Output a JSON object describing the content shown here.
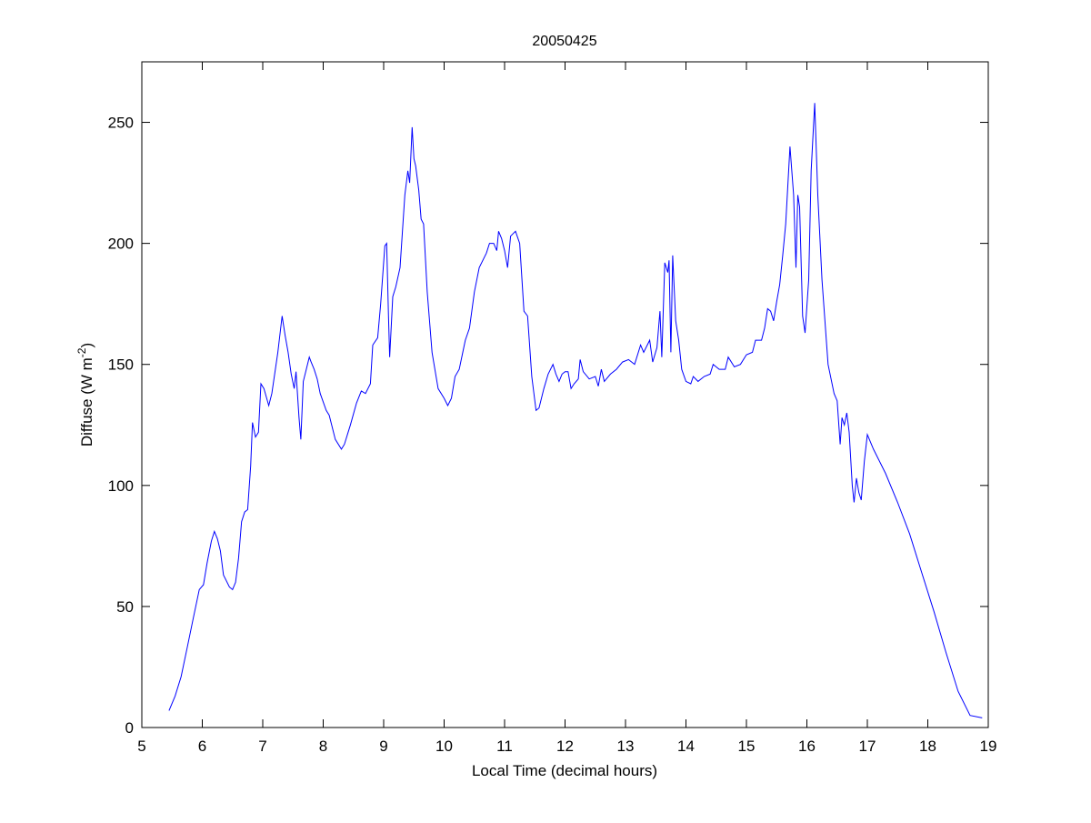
{
  "chart_data": {
    "type": "line",
    "title": "20050425",
    "xlabel": "Local Time (decimal hours)",
    "ylabel_main": "Diffuse (W m",
    "ylabel_sup": "-2",
    "ylabel_close": ")",
    "xlim": [
      5,
      19
    ],
    "ylim": [
      0,
      275
    ],
    "xticks": [
      5,
      6,
      7,
      8,
      9,
      10,
      11,
      12,
      13,
      14,
      15,
      16,
      17,
      18,
      19
    ],
    "yticks": [
      0,
      50,
      100,
      150,
      200,
      250
    ],
    "grid": false,
    "line_color": "#0000ff",
    "series": [
      {
        "name": "Diffuse",
        "points": [
          [
            5.45,
            7
          ],
          [
            5.55,
            13
          ],
          [
            5.65,
            21
          ],
          [
            5.75,
            33
          ],
          [
            5.85,
            45
          ],
          [
            5.95,
            57
          ],
          [
            6.02,
            59
          ],
          [
            6.08,
            68
          ],
          [
            6.15,
            77
          ],
          [
            6.2,
            81
          ],
          [
            6.25,
            78
          ],
          [
            6.3,
            73
          ],
          [
            6.35,
            63
          ],
          [
            6.45,
            58
          ],
          [
            6.5,
            57
          ],
          [
            6.55,
            60
          ],
          [
            6.6,
            70
          ],
          [
            6.65,
            85
          ],
          [
            6.7,
            89
          ],
          [
            6.75,
            90
          ],
          [
            6.8,
            108
          ],
          [
            6.83,
            126
          ],
          [
            6.88,
            120
          ],
          [
            6.93,
            122
          ],
          [
            6.97,
            142
          ],
          [
            7.02,
            140
          ],
          [
            7.1,
            133
          ],
          [
            7.15,
            138
          ],
          [
            7.25,
            155
          ],
          [
            7.32,
            170
          ],
          [
            7.37,
            162
          ],
          [
            7.42,
            155
          ],
          [
            7.47,
            146
          ],
          [
            7.52,
            140
          ],
          [
            7.55,
            147
          ],
          [
            7.6,
            128
          ],
          [
            7.63,
            119
          ],
          [
            7.67,
            143
          ],
          [
            7.72,
            148
          ],
          [
            7.77,
            153
          ],
          [
            7.8,
            151
          ],
          [
            7.85,
            148
          ],
          [
            7.9,
            144
          ],
          [
            7.95,
            138
          ],
          [
            8.05,
            131
          ],
          [
            8.1,
            129
          ],
          [
            8.2,
            119
          ],
          [
            8.3,
            115
          ],
          [
            8.35,
            117
          ],
          [
            8.45,
            125
          ],
          [
            8.55,
            134
          ],
          [
            8.63,
            139
          ],
          [
            8.7,
            138
          ],
          [
            8.78,
            142
          ],
          [
            8.82,
            158
          ],
          [
            8.9,
            161
          ],
          [
            8.95,
            175
          ],
          [
            9.02,
            199
          ],
          [
            9.05,
            200
          ],
          [
            9.08,
            170
          ],
          [
            9.1,
            153
          ],
          [
            9.15,
            178
          ],
          [
            9.2,
            182
          ],
          [
            9.27,
            190
          ],
          [
            9.35,
            220
          ],
          [
            9.4,
            230
          ],
          [
            9.43,
            225
          ],
          [
            9.47,
            248
          ],
          [
            9.5,
            235
          ],
          [
            9.53,
            232
          ],
          [
            9.58,
            222
          ],
          [
            9.62,
            210
          ],
          [
            9.66,
            208
          ],
          [
            9.72,
            180
          ],
          [
            9.8,
            155
          ],
          [
            9.9,
            140
          ],
          [
            10.0,
            136
          ],
          [
            10.06,
            133
          ],
          [
            10.12,
            136
          ],
          [
            10.18,
            145
          ],
          [
            10.25,
            148
          ],
          [
            10.35,
            160
          ],
          [
            10.42,
            165
          ],
          [
            10.5,
            180
          ],
          [
            10.58,
            190
          ],
          [
            10.7,
            196
          ],
          [
            10.75,
            200
          ],
          [
            10.82,
            200
          ],
          [
            10.87,
            197
          ],
          [
            10.9,
            205
          ],
          [
            10.95,
            202
          ],
          [
            11.0,
            197
          ],
          [
            11.05,
            190
          ],
          [
            11.1,
            203
          ],
          [
            11.18,
            205
          ],
          [
            11.25,
            200
          ],
          [
            11.32,
            172
          ],
          [
            11.38,
            170
          ],
          [
            11.45,
            145
          ],
          [
            11.52,
            131
          ],
          [
            11.57,
            132
          ],
          [
            11.65,
            140
          ],
          [
            11.72,
            146
          ],
          [
            11.8,
            150
          ],
          [
            11.85,
            146
          ],
          [
            11.9,
            143
          ],
          [
            11.95,
            146
          ],
          [
            12.0,
            147
          ],
          [
            12.05,
            147
          ],
          [
            12.1,
            140
          ],
          [
            12.15,
            142
          ],
          [
            12.22,
            144
          ],
          [
            12.25,
            152
          ],
          [
            12.3,
            147
          ],
          [
            12.4,
            144
          ],
          [
            12.5,
            145
          ],
          [
            12.55,
            141
          ],
          [
            12.6,
            148
          ],
          [
            12.65,
            143
          ],
          [
            12.75,
            146
          ],
          [
            12.85,
            148
          ],
          [
            12.95,
            151
          ],
          [
            13.05,
            152
          ],
          [
            13.15,
            150
          ],
          [
            13.25,
            158
          ],
          [
            13.3,
            155
          ],
          [
            13.4,
            160
          ],
          [
            13.45,
            151
          ],
          [
            13.52,
            157
          ],
          [
            13.57,
            172
          ],
          [
            13.6,
            153
          ],
          [
            13.65,
            192
          ],
          [
            13.7,
            188
          ],
          [
            13.72,
            193
          ],
          [
            13.75,
            155
          ],
          [
            13.78,
            195
          ],
          [
            13.83,
            168
          ],
          [
            13.88,
            160
          ],
          [
            13.93,
            148
          ],
          [
            14.0,
            143
          ],
          [
            14.08,
            142
          ],
          [
            14.12,
            145
          ],
          [
            14.2,
            143
          ],
          [
            14.3,
            145
          ],
          [
            14.4,
            146
          ],
          [
            14.45,
            150
          ],
          [
            14.55,
            148
          ],
          [
            14.65,
            148
          ],
          [
            14.7,
            153
          ],
          [
            14.8,
            149
          ],
          [
            14.9,
            150
          ],
          [
            15.0,
            154
          ],
          [
            15.1,
            155
          ],
          [
            15.15,
            160
          ],
          [
            15.25,
            160
          ],
          [
            15.3,
            165
          ],
          [
            15.35,
            173
          ],
          [
            15.4,
            172
          ],
          [
            15.45,
            168
          ],
          [
            15.5,
            176
          ],
          [
            15.55,
            183
          ],
          [
            15.6,
            195
          ],
          [
            15.65,
            208
          ],
          [
            15.72,
            240
          ],
          [
            15.78,
            220
          ],
          [
            15.82,
            190
          ],
          [
            15.85,
            220
          ],
          [
            15.88,
            215
          ],
          [
            15.93,
            170
          ],
          [
            15.97,
            163
          ],
          [
            16.03,
            185
          ],
          [
            16.07,
            230
          ],
          [
            16.13,
            258
          ],
          [
            16.18,
            220
          ],
          [
            16.25,
            185
          ],
          [
            16.35,
            150
          ],
          [
            16.45,
            138
          ],
          [
            16.5,
            135
          ],
          [
            16.55,
            117
          ],
          [
            16.58,
            128
          ],
          [
            16.62,
            125
          ],
          [
            16.66,
            130
          ],
          [
            16.7,
            122
          ],
          [
            16.75,
            100
          ],
          [
            16.78,
            93
          ],
          [
            16.82,
            103
          ],
          [
            16.86,
            97
          ],
          [
            16.9,
            94
          ],
          [
            16.95,
            110
          ],
          [
            17.0,
            121
          ],
          [
            17.1,
            115
          ],
          [
            17.3,
            105
          ],
          [
            17.5,
            93
          ],
          [
            17.7,
            80
          ],
          [
            17.9,
            64
          ],
          [
            18.1,
            48
          ],
          [
            18.3,
            31
          ],
          [
            18.5,
            15
          ],
          [
            18.7,
            5
          ],
          [
            18.9,
            4
          ]
        ]
      }
    ]
  }
}
